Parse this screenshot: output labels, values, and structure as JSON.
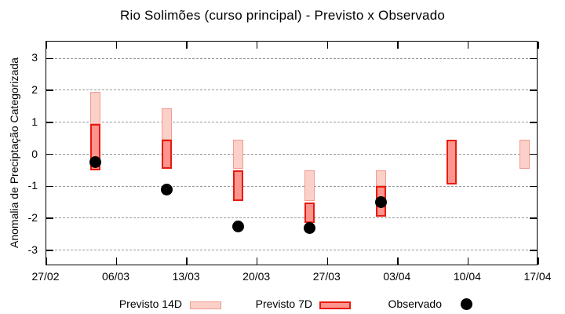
{
  "chart_data": {
    "type": "bar",
    "subtype": "categorized-range-bars-with-observed-points",
    "title": "Rio Solimões (curso principal) - Previsto x Observado",
    "xlabel": "",
    "ylabel": "Anomalia de Preciptação Categorizada",
    "ylim": [
      -3.5,
      3.5
    ],
    "yticks": [
      3,
      2,
      1,
      0,
      -1,
      -2,
      -3
    ],
    "xticks": [
      "27/02",
      "06/03",
      "13/03",
      "20/03",
      "27/03",
      "03/04",
      "10/04",
      "17/04"
    ],
    "x_axis_span_days": 49,
    "grid": "horizontal dashed gray",
    "legend_position": "bottom",
    "group_day_offsets_from_first_tick": [
      4.9,
      12.0,
      19.1,
      26.2,
      33.3,
      40.4,
      47.6
    ],
    "series": [
      {
        "name": "Previsto 14D",
        "type": "range-bar",
        "fill_color": "#fbd0c9",
        "border_color": "#f19b90",
        "ranges": [
          [
            0.95,
            1.95
          ],
          [
            0.45,
            1.45
          ],
          [
            -0.45,
            0.45
          ],
          [
            -1.45,
            -0.5
          ],
          [
            -1.0,
            -0.5
          ],
          null,
          [
            -0.45,
            0.45
          ]
        ]
      },
      {
        "name": "Previsto 7D",
        "type": "range-bar",
        "fill_color": "#fb958d",
        "border_color": "#e81a0f",
        "ranges": [
          [
            -0.5,
            0.95
          ],
          [
            -0.45,
            0.45
          ],
          [
            -1.45,
            -0.5
          ],
          [
            -2.15,
            -1.5
          ],
          [
            -1.95,
            -1.0
          ],
          [
            -0.95,
            0.45
          ],
          null
        ]
      },
      {
        "name": "Observado",
        "type": "scatter",
        "color": "#000000",
        "values": [
          -0.25,
          -1.1,
          -2.25,
          -2.3,
          -1.5,
          null,
          null
        ]
      }
    ]
  },
  "colors": {
    "background": "#ffffff",
    "plot_border": "#000000",
    "gridline": "#9a9a9a",
    "previsto_14d_fill": "#fbd0c9",
    "previsto_14d_border": "#f19b90",
    "previsto_7d_fill": "#fb958d",
    "previsto_7d_border": "#e81a0f",
    "observado": "#000000"
  }
}
